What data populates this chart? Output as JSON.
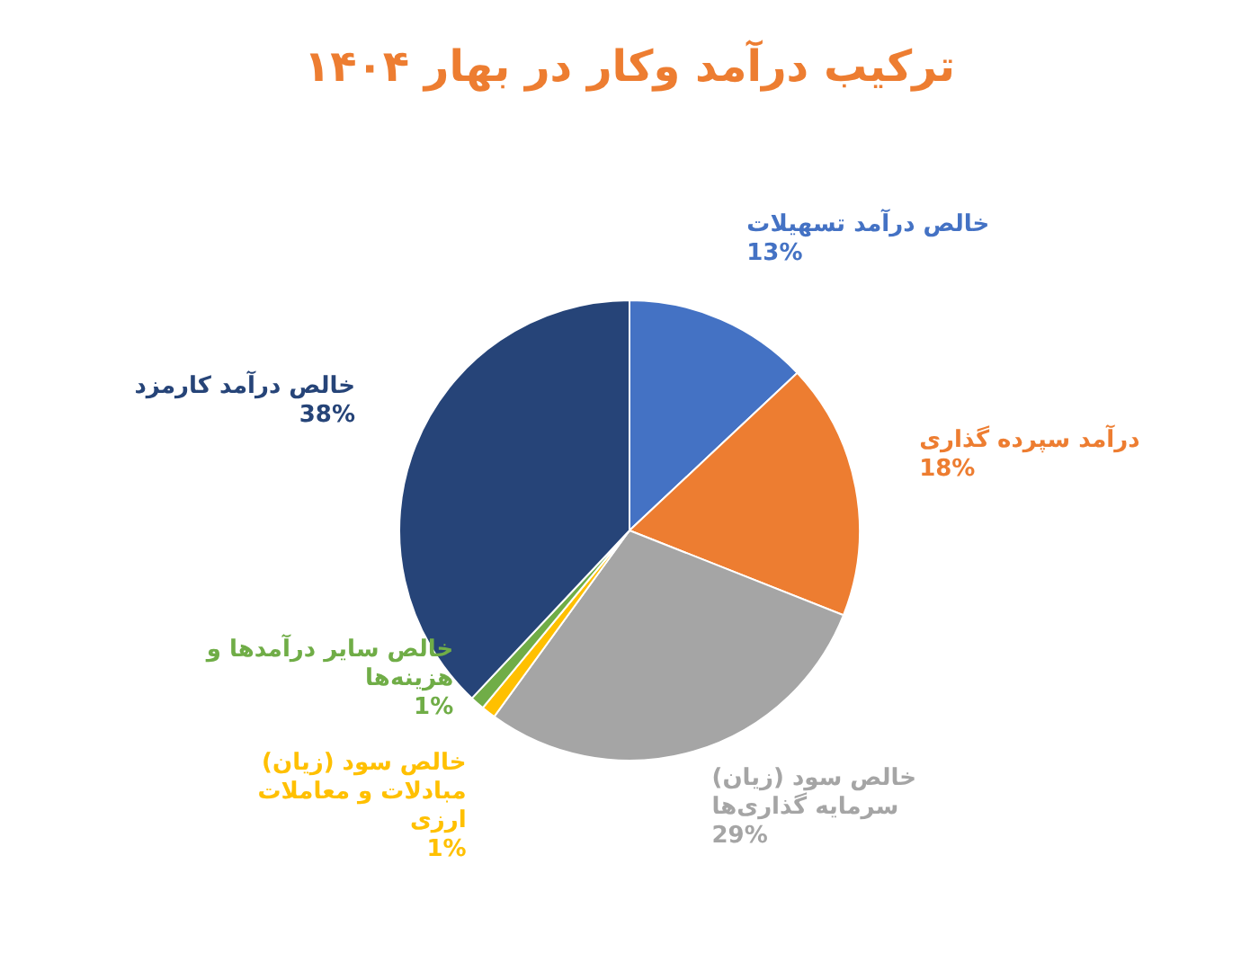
{
  "chart_data": {
    "type": "pie",
    "title": "ترکیب درآمد وکار در بهار ۱۴۰۴",
    "categories": [
      "خالص درآمد تسهیلات",
      "درآمد سپرده گذاری",
      "خالص سود (زیان) سرمایه گذاری‌ها",
      "خالص سود (زیان) مبادلات و معاملات ارزی",
      "خالص سایر درآمدها و هزینه‌ها",
      "خالص درآمد کارمزد"
    ],
    "values": [
      13,
      18,
      29,
      1,
      1,
      38
    ],
    "value_labels": [
      "13%",
      "18%",
      "29%",
      "1%",
      "1%",
      "38%"
    ],
    "colors": [
      "#4472c4",
      "#ed7d31",
      "#a5a5a5",
      "#ffc000",
      "#70ad47",
      "#264478"
    ]
  }
}
